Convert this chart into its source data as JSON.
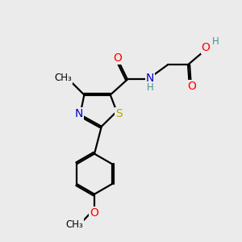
{
  "background_color": "#ebebeb",
  "atom_colors": {
    "C": "#000000",
    "N": "#0000cc",
    "O": "#ff0000",
    "S": "#aaaa00",
    "H": "#4a9090"
  },
  "bond_color": "#000000",
  "bond_width": 1.6,
  "font_size_atoms": 10,
  "font_size_small": 8.5
}
